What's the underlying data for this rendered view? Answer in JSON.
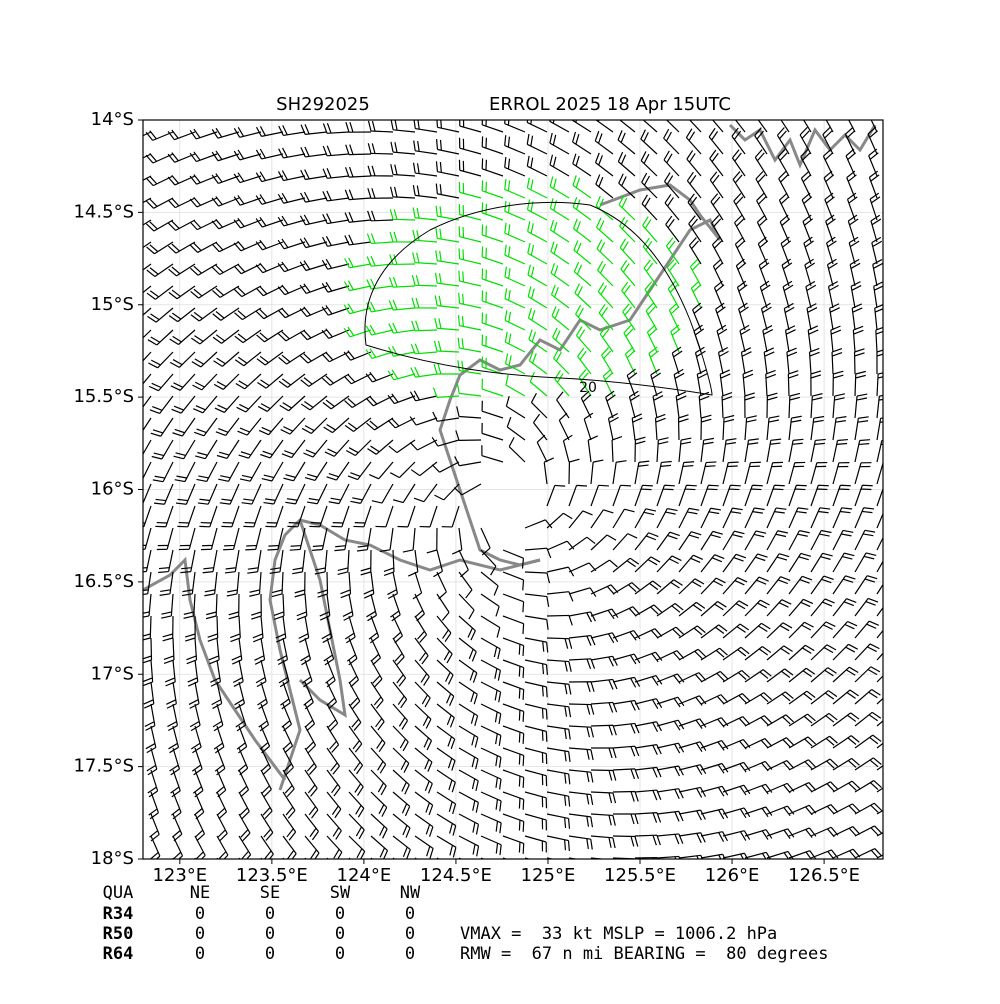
{
  "title_left": "SH292025",
  "title_right": "ERROL 2025 18 Apr 15UTC",
  "map": {
    "xlim": [
      122.8,
      126.82
    ],
    "ylim": [
      -18,
      -14
    ],
    "xticks": [
      {
        "value": 123,
        "label": "123°E"
      },
      {
        "value": 123.5,
        "label": "123.5°E"
      },
      {
        "value": 124,
        "label": "124°E"
      },
      {
        "value": 124.5,
        "label": "124.5°E"
      },
      {
        "value": 125,
        "label": "125°E"
      },
      {
        "value": 125.5,
        "label": "125.5°E"
      },
      {
        "value": 126,
        "label": "126°E"
      },
      {
        "value": 126.5,
        "label": "126.5°E"
      }
    ],
    "yticks": [
      {
        "value": -14,
        "label": "14°S"
      },
      {
        "value": -14.5,
        "label": "14.5°S"
      },
      {
        "value": -15,
        "label": "15°S"
      },
      {
        "value": -15.5,
        "label": "15.5°S"
      },
      {
        "value": -16,
        "label": "16°S"
      },
      {
        "value": -16.5,
        "label": "16.5°S"
      },
      {
        "value": -17,
        "label": "17°S"
      },
      {
        "value": -17.5,
        "label": "17.5°S"
      },
      {
        "value": -18,
        "label": "18°S"
      }
    ],
    "contour_label": "20"
  },
  "table": {
    "header": [
      "QUA",
      "NE",
      "SE",
      "SW",
      "NW"
    ],
    "rows": [
      [
        "R34",
        0,
        0,
        0,
        0
      ],
      [
        "R50",
        0,
        0,
        0,
        0
      ],
      [
        "R64",
        0,
        0,
        0,
        0
      ]
    ]
  },
  "info": [
    "VMAX =  33 kt MSLP = 1006.2 hPa",
    "RMW =  67 n mi BEARING =  80 degrees"
  ]
}
